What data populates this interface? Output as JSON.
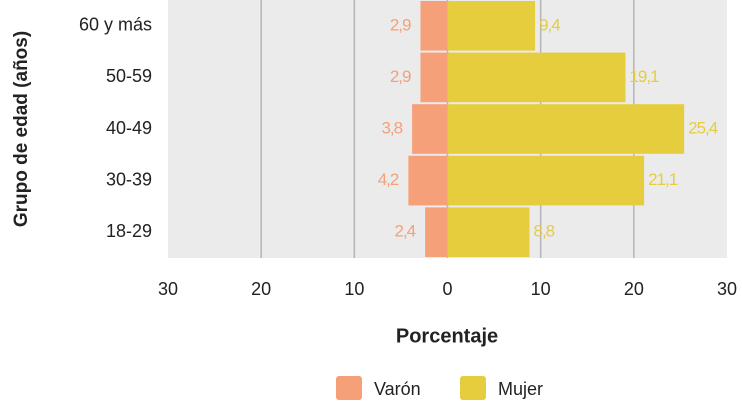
{
  "chart_data": {
    "type": "bar",
    "orientation": "horizontal",
    "xlabel": "Porcentaje",
    "ylabel": "Grupo de edad (años)",
    "categories": [
      "60 y más",
      "50-59",
      "40-49",
      "30-39",
      "18-29"
    ],
    "series": [
      {
        "name": "Varón",
        "color": "#f5a079",
        "values": [
          -2.9,
          -2.9,
          -3.8,
          -4.2,
          -2.4
        ],
        "value_labels": [
          "2,9",
          "2,9",
          "3,8",
          "4,2",
          "2,4"
        ]
      },
      {
        "name": "Mujer",
        "color": "#e6cd3e",
        "values": [
          9.4,
          19.1,
          25.4,
          21.1,
          8.8
        ],
        "value_labels": [
          "9,4",
          "19,1",
          "25,4",
          "21,1",
          "8,8"
        ]
      }
    ],
    "xlim": [
      -30,
      30
    ],
    "xticks": [
      {
        "value": -30,
        "label": "30"
      },
      {
        "value": -20,
        "label": "20"
      },
      {
        "value": -10,
        "label": "10"
      },
      0,
      10,
      20,
      30
    ],
    "grid": true,
    "legend": "bottom"
  }
}
